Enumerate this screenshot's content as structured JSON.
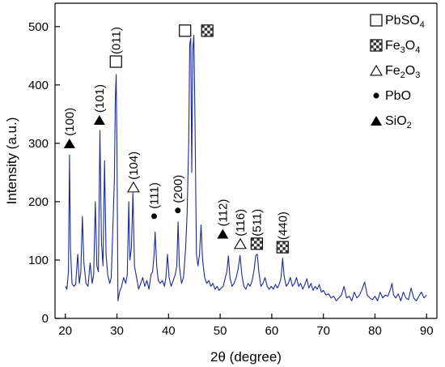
{
  "chart_data": {
    "type": "line",
    "title": "",
    "xlabel": "2θ (degree)",
    "ylabel": "Intensity (a.u.)",
    "xlim": [
      18,
      92
    ],
    "ylim": [
      0,
      540
    ],
    "xticks": [
      20,
      30,
      40,
      50,
      60,
      70,
      80,
      90
    ],
    "yticks": [
      0,
      100,
      200,
      300,
      400,
      500
    ],
    "grid": false,
    "legend_position": "top-right",
    "line_color": "#1a2a9a",
    "legend": [
      {
        "marker": "square-open",
        "label": "PbSO",
        "sub": "4"
      },
      {
        "marker": "square-checker",
        "label": "Fe",
        "sub": "3",
        "label2": "O",
        "sub2": "4"
      },
      {
        "marker": "triangle-open",
        "label": "Fe",
        "sub": "2",
        "label2": "O",
        "sub2": "3"
      },
      {
        "marker": "dot",
        "label": "PbO"
      },
      {
        "marker": "triangle-filled",
        "label": "SiO",
        "sub": "2"
      }
    ],
    "annotations": [
      {
        "label": "(100)",
        "marker": "triangle-filled",
        "x": 20.8,
        "y": 300
      },
      {
        "label": "(101)",
        "marker": "triangle-filled",
        "x": 26.6,
        "y": 340
      },
      {
        "label": "(011)",
        "marker": "square-open",
        "x": 29.8,
        "y": 440
      },
      {
        "label": "(104)",
        "marker": "triangle-open",
        "x": 33.2,
        "y": 225
      },
      {
        "label": "(111)",
        "marker": "dot",
        "x": 37.2,
        "y": 175
      },
      {
        "label": "(200)",
        "marker": "dot",
        "x": 41.8,
        "y": 185
      },
      {
        "label": "",
        "marker": "square-open",
        "x": 43.2,
        "y": 493
      },
      {
        "label": "",
        "marker": "square-checker",
        "x": 47.5,
        "y": 493
      },
      {
        "label": "(112)",
        "marker": "triangle-filled",
        "x": 50.5,
        "y": 145
      },
      {
        "label": "(116)",
        "marker": "triangle-open",
        "x": 53.9,
        "y": 128
      },
      {
        "label": "(511)",
        "marker": "square-checker",
        "x": 57.1,
        "y": 128
      },
      {
        "label": "(440)",
        "marker": "square-checker",
        "x": 62.1,
        "y": 122
      }
    ],
    "series": [
      {
        "points": [
          [
            20.0,
            55
          ],
          [
            20.3,
            50
          ],
          [
            20.6,
            80
          ],
          [
            20.8,
            280
          ],
          [
            21.0,
            120
          ],
          [
            21.3,
            60
          ],
          [
            21.6,
            55
          ],
          [
            22.0,
            58
          ],
          [
            22.4,
            110
          ],
          [
            22.7,
            60
          ],
          [
            23.0,
            80
          ],
          [
            23.3,
            175
          ],
          [
            23.6,
            95
          ],
          [
            24.0,
            60
          ],
          [
            24.4,
            55
          ],
          [
            24.8,
            95
          ],
          [
            25.2,
            60
          ],
          [
            25.5,
            75
          ],
          [
            25.8,
            200
          ],
          [
            26.1,
            90
          ],
          [
            26.4,
            80
          ],
          [
            26.7,
            322
          ],
          [
            27.0,
            130
          ],
          [
            27.3,
            90
          ],
          [
            27.6,
            270
          ],
          [
            27.9,
            110
          ],
          [
            28.2,
            75
          ],
          [
            28.6,
            60
          ],
          [
            28.9,
            70
          ],
          [
            29.2,
            150
          ],
          [
            29.5,
            240
          ],
          [
            29.7,
            380
          ],
          [
            29.85,
            418
          ],
          [
            30.0,
            300
          ],
          [
            30.2,
            30
          ],
          [
            30.5,
            45
          ],
          [
            30.9,
            55
          ],
          [
            31.3,
            70
          ],
          [
            31.7,
            60
          ],
          [
            32.0,
            75
          ],
          [
            32.3,
            200
          ],
          [
            32.5,
            100
          ],
          [
            32.8,
            120
          ],
          [
            33.1,
            215
          ],
          [
            33.4,
            90
          ],
          [
            33.8,
            70
          ],
          [
            34.2,
            50
          ],
          [
            34.6,
            60
          ],
          [
            35.0,
            70
          ],
          [
            35.4,
            55
          ],
          [
            35.8,
            65
          ],
          [
            36.2,
            50
          ],
          [
            36.6,
            75
          ],
          [
            36.9,
            80
          ],
          [
            37.2,
            110
          ],
          [
            37.4,
            148
          ],
          [
            37.7,
            90
          ],
          [
            38.0,
            65
          ],
          [
            38.4,
            60
          ],
          [
            38.8,
            65
          ],
          [
            39.2,
            55
          ],
          [
            39.5,
            70
          ],
          [
            39.8,
            110
          ],
          [
            40.1,
            70
          ],
          [
            40.5,
            55
          ],
          [
            40.9,
            65
          ],
          [
            41.3,
            75
          ],
          [
            41.6,
            90
          ],
          [
            41.85,
            165
          ],
          [
            42.1,
            90
          ],
          [
            42.5,
            60
          ],
          [
            42.9,
            70
          ],
          [
            43.3,
            120
          ],
          [
            43.6,
            180
          ],
          [
            43.9,
            300
          ],
          [
            44.1,
            470
          ],
          [
            44.3,
            480
          ],
          [
            44.5,
            250
          ],
          [
            44.7,
            460
          ],
          [
            44.9,
            485
          ],
          [
            45.1,
            350
          ],
          [
            45.4,
            110
          ],
          [
            45.7,
            90
          ],
          [
            46.0,
            110
          ],
          [
            46.3,
            160
          ],
          [
            46.6,
            100
          ],
          [
            47.0,
            70
          ],
          [
            47.4,
            60
          ],
          [
            47.8,
            65
          ],
          [
            48.2,
            55
          ],
          [
            48.6,
            60
          ],
          [
            49.0,
            50
          ],
          [
            49.4,
            55
          ],
          [
            49.8,
            48
          ],
          [
            50.2,
            52
          ],
          [
            50.6,
            55
          ],
          [
            51.0,
            70
          ],
          [
            51.3,
            80
          ],
          [
            51.6,
            107
          ],
          [
            51.9,
            70
          ],
          [
            52.3,
            55
          ],
          [
            52.7,
            60
          ],
          [
            53.1,
            70
          ],
          [
            53.5,
            85
          ],
          [
            53.85,
            108
          ],
          [
            54.2,
            75
          ],
          [
            54.6,
            55
          ],
          [
            55.0,
            50
          ],
          [
            55.4,
            60
          ],
          [
            55.8,
            55
          ],
          [
            56.2,
            65
          ],
          [
            56.6,
            85
          ],
          [
            56.9,
            108
          ],
          [
            57.2,
            110
          ],
          [
            57.5,
            80
          ],
          [
            57.9,
            55
          ],
          [
            58.3,
            60
          ],
          [
            58.7,
            70
          ],
          [
            59.1,
            55
          ],
          [
            59.5,
            50
          ],
          [
            59.9,
            55
          ],
          [
            60.3,
            50
          ],
          [
            60.7,
            58
          ],
          [
            61.1,
            52
          ],
          [
            61.5,
            60
          ],
          [
            61.8,
            70
          ],
          [
            62.1,
            103
          ],
          [
            62.4,
            72
          ],
          [
            62.8,
            55
          ],
          [
            63.2,
            60
          ],
          [
            63.6,
            70
          ],
          [
            64.0,
            55
          ],
          [
            64.4,
            60
          ],
          [
            64.8,
            70
          ],
          [
            65.2,
            55
          ],
          [
            65.6,
            60
          ],
          [
            66.0,
            50
          ],
          [
            66.4,
            58
          ],
          [
            66.8,
            68
          ],
          [
            67.2,
            52
          ],
          [
            67.6,
            60
          ],
          [
            68.0,
            48
          ],
          [
            68.4,
            55
          ],
          [
            68.8,
            50
          ],
          [
            69.2,
            58
          ],
          [
            69.6,
            45
          ],
          [
            70.0,
            48
          ],
          [
            70.5,
            40
          ],
          [
            71.0,
            42
          ],
          [
            71.5,
            35
          ],
          [
            72.0,
            38
          ],
          [
            72.5,
            30
          ],
          [
            73.0,
            35
          ],
          [
            73.5,
            40
          ],
          [
            74.0,
            55
          ],
          [
            74.5,
            35
          ],
          [
            75.0,
            38
          ],
          [
            75.5,
            30
          ],
          [
            76.0,
            45
          ],
          [
            76.5,
            35
          ],
          [
            77.0,
            40
          ],
          [
            77.5,
            50
          ],
          [
            78.0,
            62
          ],
          [
            78.5,
            40
          ],
          [
            79.0,
            35
          ],
          [
            79.5,
            32
          ],
          [
            80.0,
            38
          ],
          [
            80.5,
            30
          ],
          [
            81.0,
            45
          ],
          [
            81.5,
            35
          ],
          [
            82.0,
            40
          ],
          [
            82.5,
            38
          ],
          [
            83.0,
            50
          ],
          [
            83.3,
            60
          ],
          [
            83.6,
            40
          ],
          [
            84.0,
            35
          ],
          [
            84.5,
            42
          ],
          [
            85.0,
            30
          ],
          [
            85.5,
            45
          ],
          [
            86.0,
            35
          ],
          [
            86.5,
            32
          ],
          [
            87.0,
            52
          ],
          [
            87.5,
            35
          ],
          [
            88.0,
            30
          ],
          [
            88.5,
            38
          ],
          [
            89.0,
            45
          ],
          [
            89.5,
            35
          ],
          [
            90.0,
            40
          ]
        ]
      }
    ]
  }
}
